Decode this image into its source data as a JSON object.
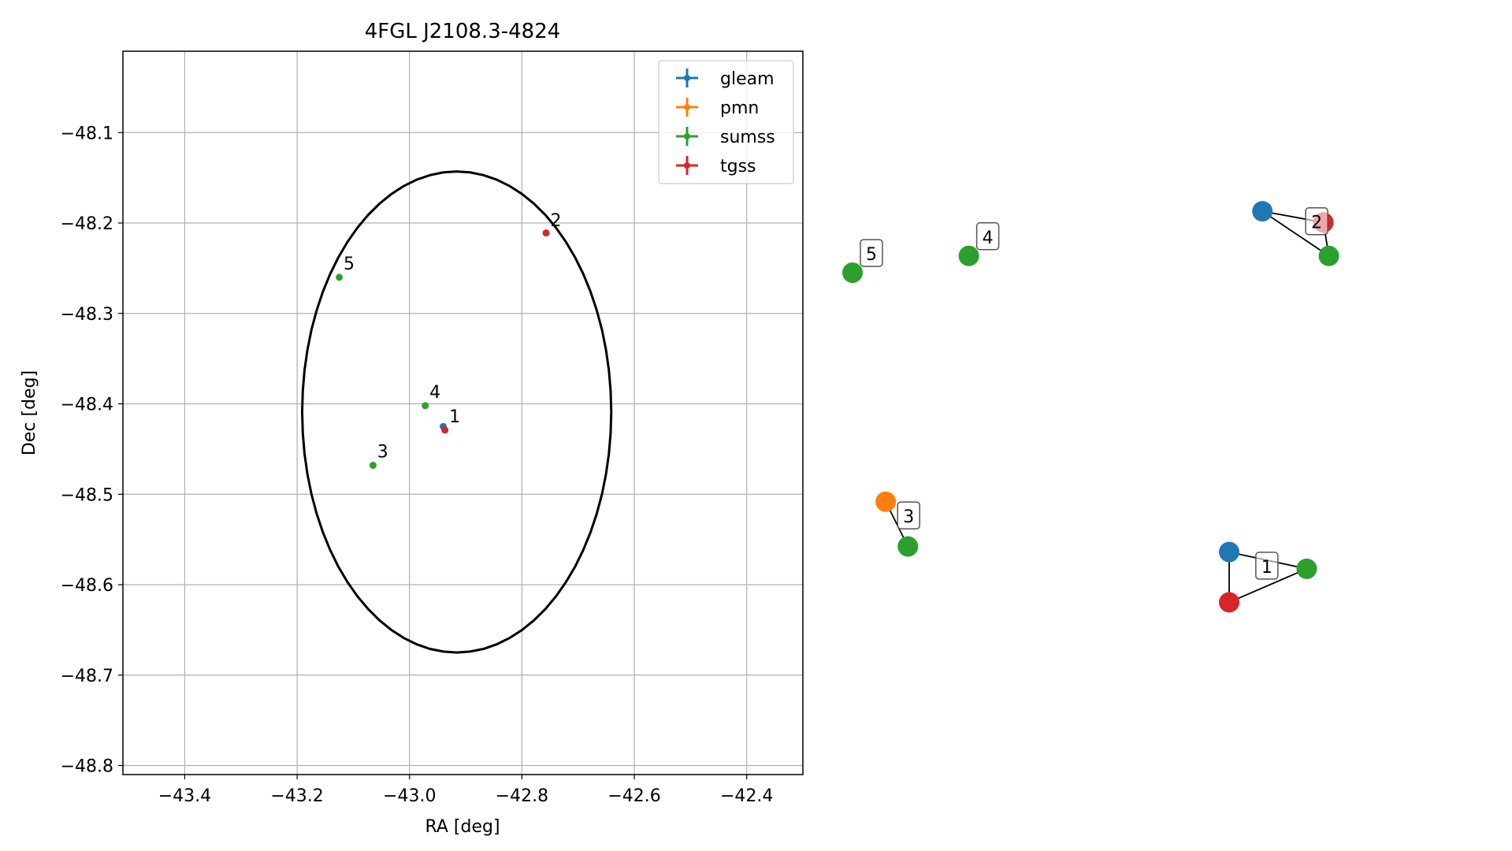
{
  "chart_data": [
    {
      "type": "scatter",
      "title": "4FGL J2108.3-4824",
      "xlabel": "RA [deg]",
      "ylabel": "Dec [deg]",
      "xlim": [
        -43.51,
        -42.3
      ],
      "ylim": [
        -48.81,
        -48.01
      ],
      "xticks": [
        -43.4,
        -43.2,
        -43.0,
        -42.8,
        -42.6,
        -42.4
      ],
      "xtick_labels": [
        "−43.4",
        "−43.2",
        "−43.0",
        "−42.8",
        "−42.6",
        "−42.4"
      ],
      "yticks": [
        -48.1,
        -48.2,
        -48.3,
        -48.4,
        -48.5,
        -48.6,
        -48.7,
        -48.8
      ],
      "ytick_labels": [
        "−48.1",
        "−48.2",
        "−48.3",
        "−48.4",
        "−48.5",
        "−48.6",
        "−48.7",
        "−48.8"
      ],
      "grid": true,
      "legend": {
        "placement": "upper right",
        "entries": [
          {
            "name": "gleam",
            "color": "#1f77b4"
          },
          {
            "name": "pmn",
            "color": "#ff7f0e"
          },
          {
            "name": "sumss",
            "color": "#2ca02c"
          },
          {
            "name": "tgss",
            "color": "#d62728"
          }
        ]
      },
      "series": [
        {
          "name": "gleam",
          "color": "#1f77b4",
          "points": [
            {
              "x": -42.94,
              "y": -48.425
            }
          ]
        },
        {
          "name": "pmn",
          "color": "#ff7f0e",
          "points": []
        },
        {
          "name": "sumss",
          "color": "#2ca02c",
          "points": [
            {
              "x": -43.125,
              "y": -48.26
            },
            {
              "x": -42.972,
              "y": -48.402
            },
            {
              "x": -43.065,
              "y": -48.468
            }
          ]
        },
        {
          "name": "tgss",
          "color": "#d62728",
          "points": [
            {
              "x": -42.937,
              "y": -48.429
            },
            {
              "x": -42.757,
              "y": -48.211
            }
          ]
        }
      ],
      "annotations": [
        {
          "text": "1",
          "x": -42.935,
          "y": -48.422
        },
        {
          "text": "2",
          "x": -42.755,
          "y": -48.205
        },
        {
          "text": "3",
          "x": -43.063,
          "y": -48.461
        },
        {
          "text": "4",
          "x": -42.97,
          "y": -48.395
        },
        {
          "text": "5",
          "x": -43.123,
          "y": -48.253
        }
      ],
      "ellipse": {
        "center_x": -42.916,
        "center_y": -48.409,
        "semi_axis_x": 0.275,
        "semi_axis_y": 0.266,
        "color": "#000000"
      }
    },
    {
      "type": "scatter",
      "title": "",
      "description_free": true,
      "nodes": [
        {
          "group": "1",
          "catalog": "gleam",
          "color": "#1f77b4",
          "x": 0.68,
          "y": 0.27
        },
        {
          "group": "1",
          "catalog": "sumss",
          "color": "#2ca02c",
          "x": 0.82,
          "y": 0.24
        },
        {
          "group": "1",
          "catalog": "tgss",
          "color": "#d62728",
          "x": 0.68,
          "y": 0.18
        },
        {
          "group": "2",
          "catalog": "gleam",
          "color": "#1f77b4",
          "x": 0.74,
          "y": 0.88
        },
        {
          "group": "2",
          "catalog": "tgss",
          "color": "#d62728",
          "x": 0.85,
          "y": 0.86
        },
        {
          "group": "2",
          "catalog": "sumss",
          "color": "#2ca02c",
          "x": 0.86,
          "y": 0.8
        },
        {
          "group": "3",
          "catalog": "pmn",
          "color": "#ff7f0e",
          "x": 0.06,
          "y": 0.36
        },
        {
          "group": "3",
          "catalog": "sumss",
          "color": "#2ca02c",
          "x": 0.1,
          "y": 0.28
        },
        {
          "group": "4",
          "catalog": "sumss",
          "color": "#2ca02c",
          "x": 0.21,
          "y": 0.8
        },
        {
          "group": "5",
          "catalog": "sumss",
          "color": "#2ca02c",
          "x": 0.0,
          "y": 0.77
        }
      ],
      "edges": [
        {
          "group": "1",
          "from": "gleam",
          "to": "sumss"
        },
        {
          "group": "1",
          "from": "sumss",
          "to": "tgss"
        },
        {
          "group": "1",
          "from": "gleam",
          "to": "tgss"
        },
        {
          "group": "2",
          "from": "gleam",
          "to": "tgss"
        },
        {
          "group": "2",
          "from": "gleam",
          "to": "sumss"
        },
        {
          "group": "2",
          "from": "tgss",
          "to": "sumss"
        },
        {
          "group": "3",
          "from": "pmn",
          "to": "sumss"
        }
      ],
      "labels": [
        "1",
        "2",
        "3",
        "4",
        "5"
      ]
    }
  ]
}
